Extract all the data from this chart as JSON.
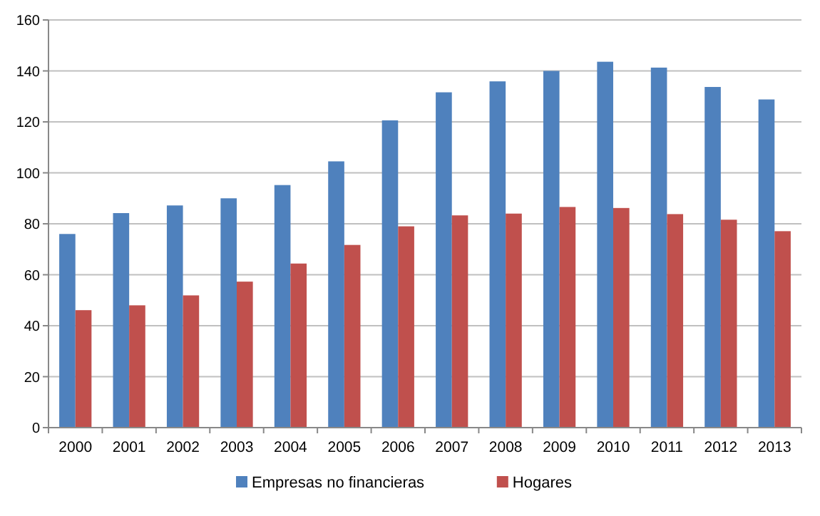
{
  "chart_data": {
    "type": "bar",
    "categories": [
      "2000",
      "2001",
      "2002",
      "2003",
      "2004",
      "2005",
      "2006",
      "2007",
      "2008",
      "2009",
      "2010",
      "2011",
      "2012",
      "2013"
    ],
    "series": [
      {
        "name": "Empresas no financieras",
        "color": "#4f81bd",
        "values": [
          76,
          84.2,
          87.2,
          90,
          95.2,
          104.5,
          120.6,
          131.6,
          135.9,
          140,
          143.6,
          141.3,
          133.7,
          128.8
        ]
      },
      {
        "name": "Hogares",
        "color": "#c0504d",
        "values": [
          46.1,
          48,
          51.9,
          57.3,
          64.4,
          71.7,
          79,
          83.3,
          84,
          86.6,
          86.2,
          83.8,
          81.6,
          77.1
        ]
      }
    ],
    "ylim": [
      0,
      160
    ],
    "yticks": [
      0,
      20,
      40,
      60,
      80,
      100,
      120,
      140,
      160
    ],
    "grid": "y",
    "legend": "bottom"
  }
}
